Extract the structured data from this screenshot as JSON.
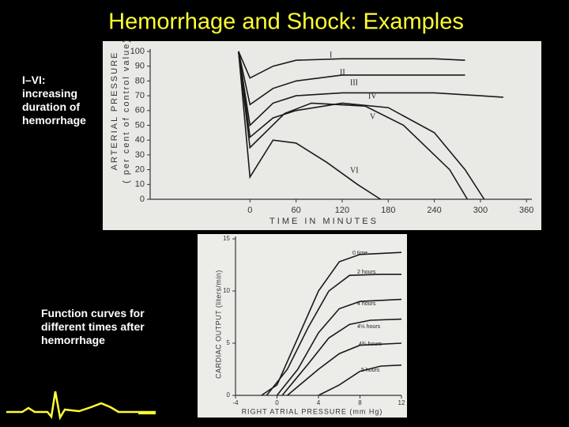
{
  "title": "Hemorrhage and Shock: Examples",
  "notes": [
    [
      "I–VI:",
      "increasing",
      "duration of",
      "hemorrhage"
    ],
    [
      "Function curves for",
      "different times after",
      "hemorrhage"
    ]
  ],
  "chart_data": [
    {
      "type": "line",
      "x_label": "TIME IN MINUTES",
      "y_label": "ARTERIAL PRESSURE",
      "y_label_2": "( per cent of control value)",
      "xlim": [
        -130,
        367
      ],
      "ylim": [
        0,
        100
      ],
      "xticks": [
        0,
        60,
        120,
        180,
        240,
        300,
        360
      ],
      "yticks": [
        0,
        10,
        20,
        30,
        40,
        50,
        60,
        70,
        80,
        90,
        100
      ],
      "series": [
        {
          "name": "I",
          "color": "#1a1a1a",
          "x": [
            -15,
            0,
            30,
            60,
            120,
            180,
            240,
            280
          ],
          "values": [
            100,
            82,
            90,
            94,
            95,
            95,
            95,
            94
          ]
        },
        {
          "name": "II",
          "color": "#1a1a1a",
          "x": [
            -15,
            0,
            30,
            60,
            120,
            180,
            240,
            280
          ],
          "values": [
            100,
            64,
            75,
            80,
            84,
            84,
            84,
            84
          ]
        },
        {
          "name": "III",
          "color": "#1a1a1a",
          "x": [
            -15,
            0,
            30,
            60,
            120,
            180,
            240,
            300,
            330
          ],
          "values": [
            100,
            50,
            65,
            70,
            72,
            72,
            72,
            70,
            69
          ]
        },
        {
          "name": "IV",
          "color": "#1a1a1a",
          "x": [
            -15,
            0,
            30,
            60,
            120,
            180,
            240,
            280,
            305
          ],
          "values": [
            100,
            42,
            55,
            60,
            65,
            62,
            45,
            20,
            0
          ]
        },
        {
          "name": "V",
          "color": "#1a1a1a",
          "x": [
            -15,
            0,
            45,
            80,
            150,
            200,
            260,
            283
          ],
          "values": [
            100,
            35,
            58,
            65,
            63,
            50,
            20,
            0
          ]
        },
        {
          "name": "VI",
          "color": "#1a1a1a",
          "x": [
            -15,
            0,
            30,
            60,
            100,
            140,
            170
          ],
          "values": [
            100,
            15,
            40,
            38,
            25,
            10,
            0
          ]
        }
      ]
    },
    {
      "type": "line",
      "x_label": "RIGHT ATRIAL PRESSURE (mm Hg)",
      "y_label": "CARDIAC OUTPUT (liters/min)",
      "xlim": [
        -4,
        12
      ],
      "ylim": [
        0,
        15
      ],
      "xticks": [
        -4,
        0,
        4,
        8,
        12
      ],
      "yticks": [
        0,
        5,
        10,
        15
      ],
      "series": [
        {
          "name": "0 time",
          "color": "#1a1a1a",
          "x": [
            -1.5,
            0,
            2,
            4,
            6,
            8,
            12
          ],
          "values": [
            0,
            1,
            5.5,
            10,
            12.8,
            13.5,
            13.7
          ]
        },
        {
          "name": "2 hours",
          "color": "#1a1a1a",
          "x": [
            -1,
            1,
            3,
            5,
            7,
            10,
            12
          ],
          "values": [
            0,
            2.5,
            6.5,
            10,
            11.5,
            11.6,
            11.6
          ]
        },
        {
          "name": "4 hours",
          "color": "#1a1a1a",
          "x": [
            0,
            2,
            4,
            6,
            8,
            12
          ],
          "values": [
            0,
            2.5,
            6,
            8.3,
            9,
            9.2
          ]
        },
        {
          "name": "4½ hours",
          "color": "#1a1a1a",
          "x": [
            0.5,
            3,
            5,
            7,
            9,
            12
          ],
          "values": [
            0,
            3,
            5.5,
            6.8,
            7.2,
            7.3
          ]
        },
        {
          "name": "4¾ hours",
          "color": "#1a1a1a",
          "x": [
            1,
            4,
            6,
            8,
            12
          ],
          "values": [
            0,
            2.5,
            4,
            4.8,
            5
          ]
        },
        {
          "name": "5 hours",
          "color": "#1a1a1a",
          "x": [
            4,
            6,
            8,
            10,
            12
          ],
          "values": [
            0,
            1,
            2.3,
            2.8,
            2.9
          ]
        }
      ]
    }
  ]
}
